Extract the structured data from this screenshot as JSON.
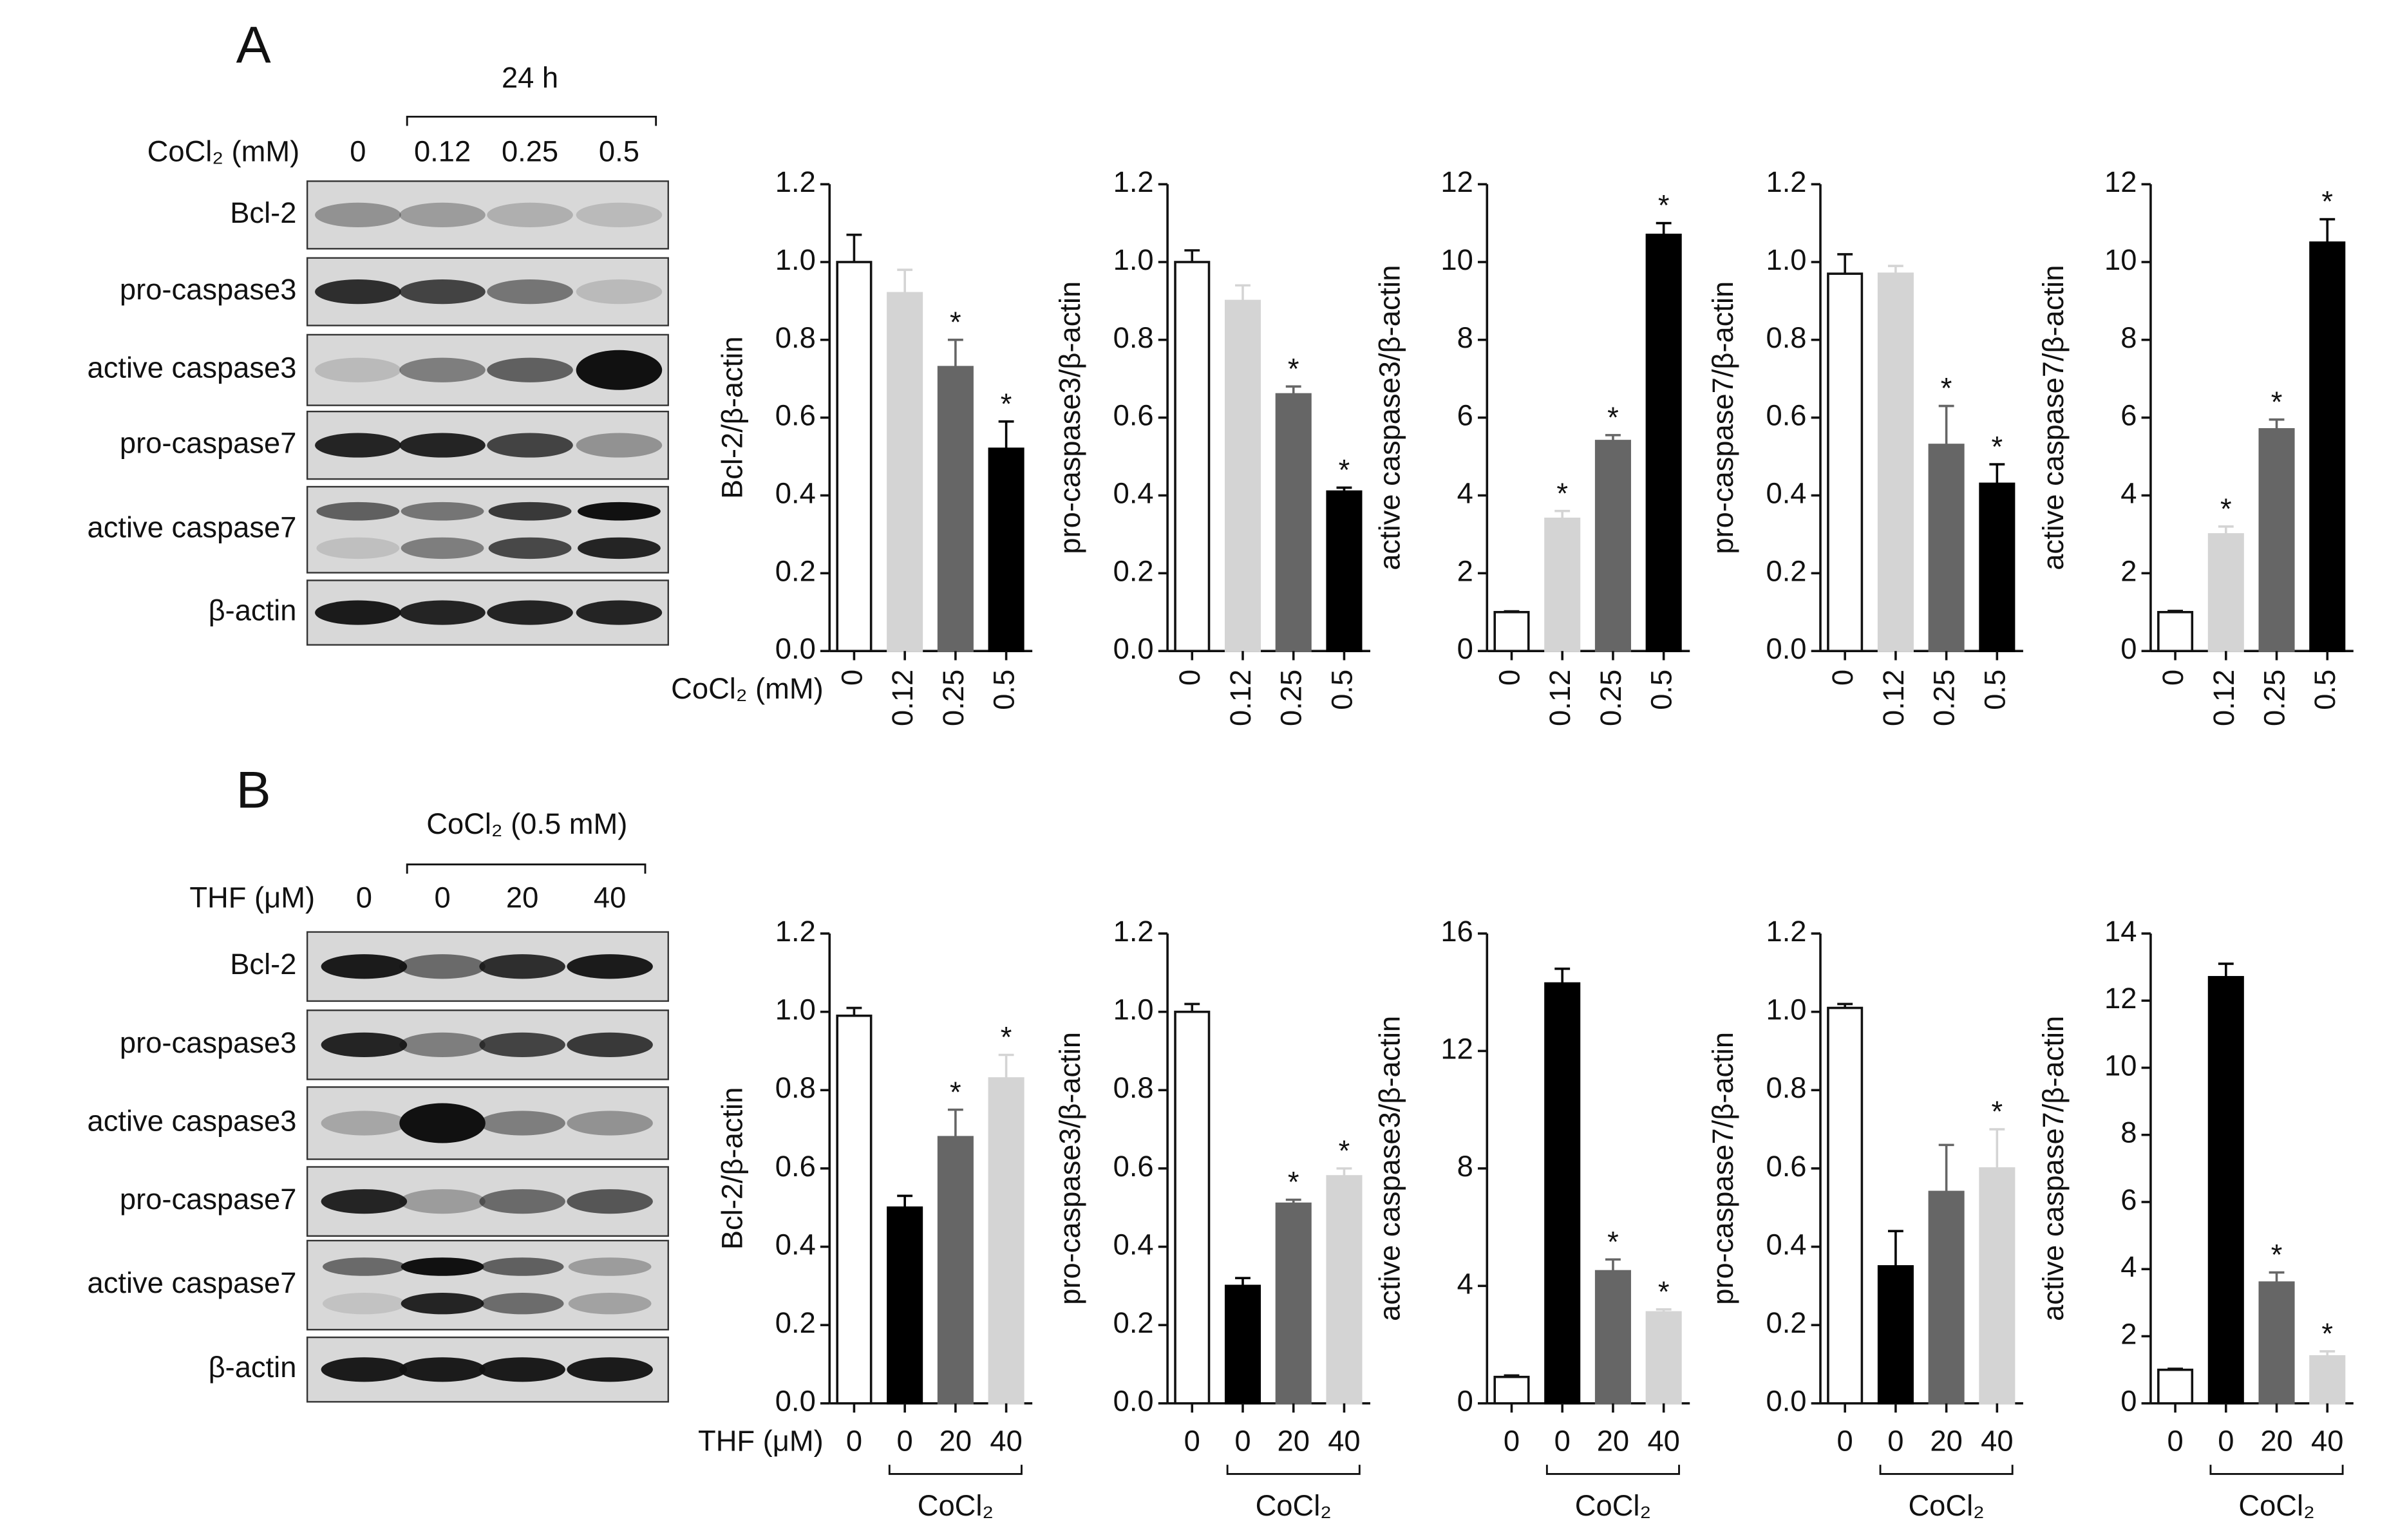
{
  "panels": [
    {
      "label": "A",
      "treatment": "24 h",
      "lane_header": "CoCl₂ (mM)",
      "lanes": [
        "0",
        "0.12",
        "0.25",
        "0.5"
      ],
      "blot_rows": [
        "Bcl-2",
        "pro-caspase3",
        "active caspase3",
        "pro-caspase7",
        "active caspase7",
        "β-actin"
      ]
    },
    {
      "label": "B",
      "treatment": "CoCl₂ (0.5 mM)",
      "lane_header": "THF (μM)",
      "lanes": [
        "0",
        "0",
        "20",
        "40"
      ],
      "blot_rows": [
        "Bcl-2",
        "pro-caspase3",
        "active caspase3",
        "pro-caspase7",
        "active caspase7",
        "β-actin"
      ]
    }
  ],
  "chart_data": [
    {
      "type": "bar",
      "y_label": "Bcl-2/β-actin",
      "x_label": "CoCl₂ (mM)",
      "categories": [
        "0",
        "0.12",
        "0.25",
        "0.5"
      ],
      "values": [
        1.0,
        0.92,
        0.73,
        0.52
      ],
      "errors": [
        0.07,
        0.06,
        0.07,
        0.07
      ],
      "significance": [
        null,
        null,
        "*",
        "*"
      ],
      "colors": [
        "#ffffff",
        "#d4d4d4",
        "#666666",
        "#000000"
      ],
      "ylim": [
        0,
        1.2
      ],
      "yticks": [
        {
          "value": 0,
          "label": "0.0"
        },
        0.2,
        0.4,
        0.6,
        0.8,
        {
          "value": 1,
          "label": "1.0"
        },
        1.2
      ]
    },
    {
      "type": "bar",
      "y_label": "pro-caspase3/β-actin",
      "categories": [
        "0",
        "0.12",
        "0.25",
        "0.5"
      ],
      "values": [
        1.0,
        0.9,
        0.66,
        0.41
      ],
      "errors": [
        0.03,
        0.04,
        0.02,
        0.01
      ],
      "significance": [
        null,
        null,
        "*",
        "*"
      ],
      "colors": [
        "#ffffff",
        "#d4d4d4",
        "#666666",
        "#000000"
      ],
      "ylim": [
        0,
        1.2
      ],
      "yticks": [
        {
          "value": 0,
          "label": "0.0"
        },
        0.2,
        0.4,
        0.6,
        0.8,
        {
          "value": 1,
          "label": "1.0"
        },
        1.2
      ]
    },
    {
      "type": "bar",
      "y_label": "active caspase3/β-actin",
      "categories": [
        "0",
        "0.12",
        "0.25",
        "0.5"
      ],
      "values": [
        1.0,
        3.4,
        5.4,
        10.7
      ],
      "errors": [
        0.02,
        0.2,
        0.15,
        0.3
      ],
      "significance": [
        null,
        "*",
        "*",
        "*"
      ],
      "colors": [
        "#ffffff",
        "#d4d4d4",
        "#666666",
        "#000000"
      ],
      "ylim": [
        0,
        12
      ],
      "yticks": [
        0,
        2,
        4,
        6,
        8,
        10,
        12
      ]
    },
    {
      "type": "bar",
      "y_label": "pro-caspase7/β-actin",
      "categories": [
        "0",
        "0.12",
        "0.25",
        "0.5"
      ],
      "values": [
        0.97,
        0.97,
        0.53,
        0.43
      ],
      "errors": [
        0.05,
        0.02,
        0.1,
        0.05
      ],
      "significance": [
        null,
        null,
        "*",
        "*"
      ],
      "colors": [
        "#ffffff",
        "#d4d4d4",
        "#666666",
        "#000000"
      ],
      "ylim": [
        0,
        1.2
      ],
      "yticks": [
        {
          "value": 0,
          "label": "0.0"
        },
        0.2,
        0.4,
        0.6,
        0.8,
        {
          "value": 1,
          "label": "1.0"
        },
        1.2
      ]
    },
    {
      "type": "bar",
      "y_label": "active caspase7/β-actin",
      "categories": [
        "0",
        "0.12",
        "0.25",
        "0.5"
      ],
      "values": [
        1.0,
        3.0,
        5.7,
        10.5
      ],
      "errors": [
        0.03,
        0.2,
        0.25,
        0.6
      ],
      "significance": [
        null,
        "*",
        "*",
        "*"
      ],
      "colors": [
        "#ffffff",
        "#d4d4d4",
        "#666666",
        "#000000"
      ],
      "ylim": [
        0,
        12
      ],
      "yticks": [
        0,
        2,
        4,
        6,
        8,
        10,
        12
      ]
    },
    {
      "type": "bar",
      "y_label": "Bcl-2/β-actin",
      "x_label": "THF (μM)",
      "bracket_label": "CoCl₂",
      "categories": [
        "0",
        "0",
        "20",
        "40"
      ],
      "values": [
        0.99,
        0.5,
        0.68,
        0.83
      ],
      "errors": [
        0.02,
        0.03,
        0.07,
        0.06
      ],
      "significance": [
        null,
        null,
        "*",
        "*"
      ],
      "colors": [
        "#ffffff",
        "#000000",
        "#666666",
        "#d4d4d4"
      ],
      "ylim": [
        0,
        1.2
      ],
      "yticks": [
        {
          "value": 0,
          "label": "0.0"
        },
        0.2,
        0.4,
        0.6,
        0.8,
        {
          "value": 1,
          "label": "1.0"
        },
        1.2
      ]
    },
    {
      "type": "bar",
      "y_label": "pro-caspase3/β-actin",
      "bracket_label": "CoCl₂",
      "categories": [
        "0",
        "0",
        "20",
        "40"
      ],
      "values": [
        1.0,
        0.3,
        0.51,
        0.58
      ],
      "errors": [
        0.02,
        0.02,
        0.01,
        0.02
      ],
      "significance": [
        null,
        null,
        "*",
        "*"
      ],
      "colors": [
        "#ffffff",
        "#000000",
        "#666666",
        "#d4d4d4"
      ],
      "ylim": [
        0,
        1.2
      ],
      "yticks": [
        {
          "value": 0,
          "label": "0.0"
        },
        0.2,
        0.4,
        0.6,
        0.8,
        {
          "value": 1,
          "label": "1.0"
        },
        1.2
      ]
    },
    {
      "type": "bar",
      "y_label": "active caspase3/β-actin",
      "bracket_label": "CoCl₂",
      "categories": [
        "0",
        "0",
        "20",
        "40"
      ],
      "values": [
        0.9,
        14.3,
        4.5,
        3.1
      ],
      "errors": [
        0.05,
        0.5,
        0.4,
        0.1
      ],
      "significance": [
        null,
        null,
        "*",
        "*"
      ],
      "colors": [
        "#ffffff",
        "#000000",
        "#666666",
        "#d4d4d4"
      ],
      "ylim": [
        0,
        16
      ],
      "yticks": [
        0,
        4,
        8,
        12,
        16
      ]
    },
    {
      "type": "bar",
      "y_label": "pro-caspase7/β-actin",
      "bracket_label": "CoCl₂",
      "categories": [
        "0",
        "0",
        "20",
        "40"
      ],
      "values": [
        1.01,
        0.35,
        0.54,
        0.6
      ],
      "errors": [
        0.01,
        0.09,
        0.12,
        0.1
      ],
      "significance": [
        null,
        null,
        null,
        "*"
      ],
      "colors": [
        "#ffffff",
        "#000000",
        "#666666",
        "#d4d4d4"
      ],
      "ylim": [
        0,
        1.2
      ],
      "yticks": [
        {
          "value": 0,
          "label": "0.0"
        },
        0.2,
        0.4,
        0.6,
        0.8,
        {
          "value": 1,
          "label": "1.0"
        },
        1.2
      ]
    },
    {
      "type": "bar",
      "y_label": "active caspase7/β-actin",
      "bracket_label": "CoCl₂",
      "categories": [
        "0",
        "0",
        "20",
        "40"
      ],
      "values": [
        1.0,
        12.7,
        3.6,
        1.4
      ],
      "errors": [
        0.03,
        0.4,
        0.3,
        0.15
      ],
      "significance": [
        null,
        null,
        "*",
        "*"
      ],
      "colors": [
        "#ffffff",
        "#000000",
        "#666666",
        "#d4d4d4"
      ],
      "ylim": [
        0,
        14
      ],
      "yticks": [
        0,
        2,
        4,
        6,
        8,
        10,
        12,
        14
      ]
    }
  ]
}
